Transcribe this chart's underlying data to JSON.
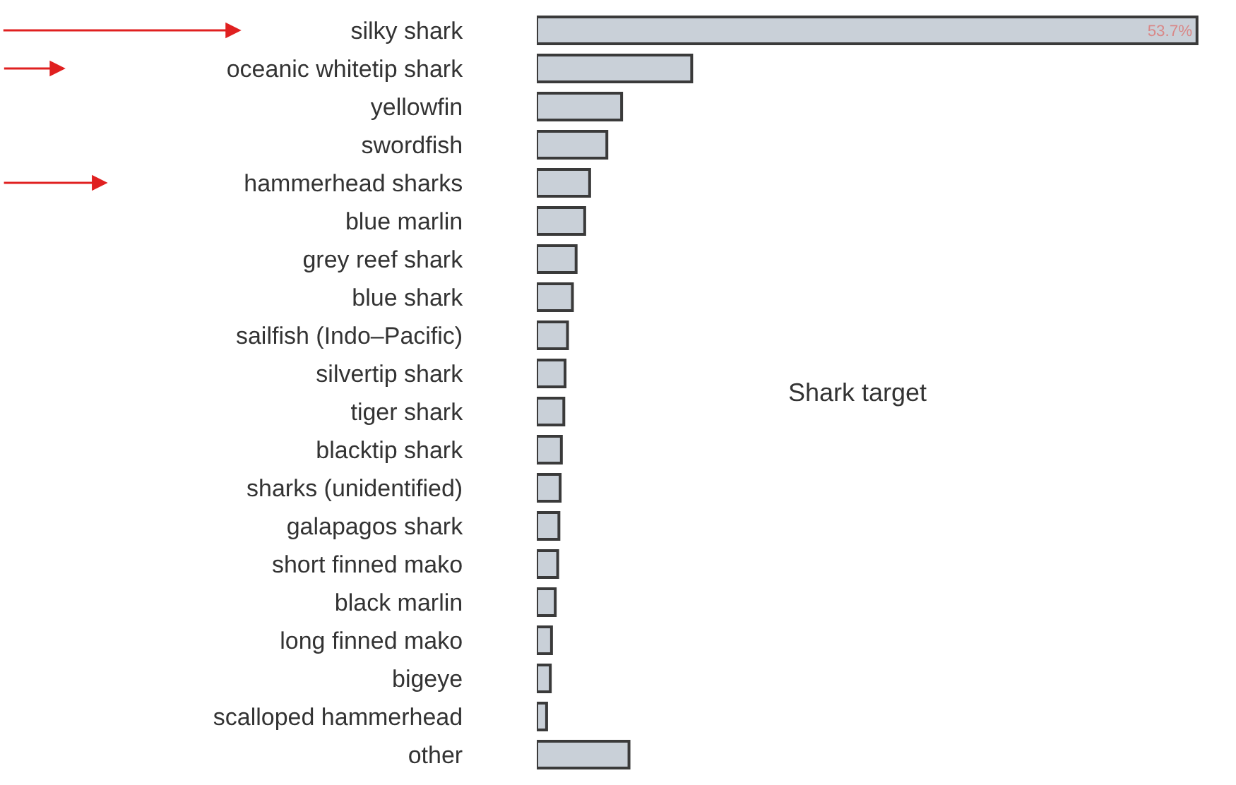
{
  "chart_data": {
    "type": "bar",
    "orientation": "horizontal",
    "categories": [
      "silky shark",
      "oceanic whitetip shark",
      "yellowfin",
      "swordfish",
      "hammerhead sharks",
      "blue marlin",
      "grey reef shark",
      "blue shark",
      "sailfish (Indo–Pacific)",
      "silvertip shark",
      "tiger shark",
      "blacktip shark",
      "sharks (unidentified)",
      "galapagos shark",
      "short finned mako",
      "black marlin",
      "long finned mako",
      "bigeye",
      "scalloped hammerhead",
      "other"
    ],
    "values": [
      53.7,
      12.6,
      6.9,
      5.7,
      4.3,
      3.9,
      3.2,
      2.9,
      2.5,
      2.3,
      2.2,
      2.0,
      1.9,
      1.8,
      1.7,
      1.5,
      1.2,
      1.1,
      0.8,
      7.5
    ],
    "value_labels": [
      "53.7%",
      null,
      null,
      null,
      null,
      null,
      null,
      null,
      null,
      null,
      null,
      null,
      null,
      null,
      null,
      null,
      null,
      null,
      null,
      null
    ],
    "color": "#c9d0d8",
    "annotations": [
      "Shark target"
    ]
  }
}
